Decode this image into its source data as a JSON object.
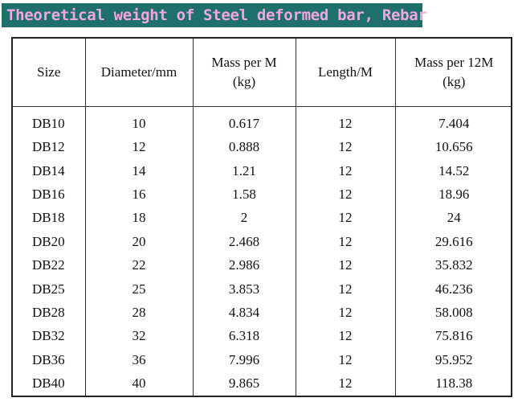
{
  "title": "Theoretical weight of Steel deformed bar, Rebar",
  "table": {
    "headers": [
      {
        "line1": "Size",
        "line2": ""
      },
      {
        "line1": "Diameter/mm",
        "line2": ""
      },
      {
        "line1": "Mass per M",
        "line2": "(kg)"
      },
      {
        "line1": "Length/M",
        "line2": ""
      },
      {
        "line1": "Mass per 12M",
        "line2": "(kg)"
      }
    ],
    "rows": [
      [
        "DB10",
        "10",
        "0.617",
        "12",
        "7.404"
      ],
      [
        "DB12",
        "12",
        "0.888",
        "12",
        "10.656"
      ],
      [
        "DB14",
        "14",
        "1.21",
        "12",
        "14.52"
      ],
      [
        "DB16",
        "16",
        "1.58",
        "12",
        "18.96"
      ],
      [
        "DB18",
        "18",
        "2",
        "12",
        "24"
      ],
      [
        "DB20",
        "20",
        "2.468",
        "12",
        "29.616"
      ],
      [
        "DB22",
        "22",
        "2.986",
        "12",
        "35.832"
      ],
      [
        "DB25",
        "25",
        "3.853",
        "12",
        "46.236"
      ],
      [
        "DB28",
        "28",
        "4.834",
        "12",
        "58.008"
      ],
      [
        "DB32",
        "32",
        "6.318",
        "12",
        "75.816"
      ],
      [
        "DB36",
        "36",
        "7.996",
        "12",
        "95.952"
      ],
      [
        "DB40",
        "40",
        "9.865",
        "12",
        "118.38"
      ]
    ]
  },
  "colors": {
    "banner_bg": "#1f6f6a",
    "banner_text": "#f3a6e4"
  }
}
